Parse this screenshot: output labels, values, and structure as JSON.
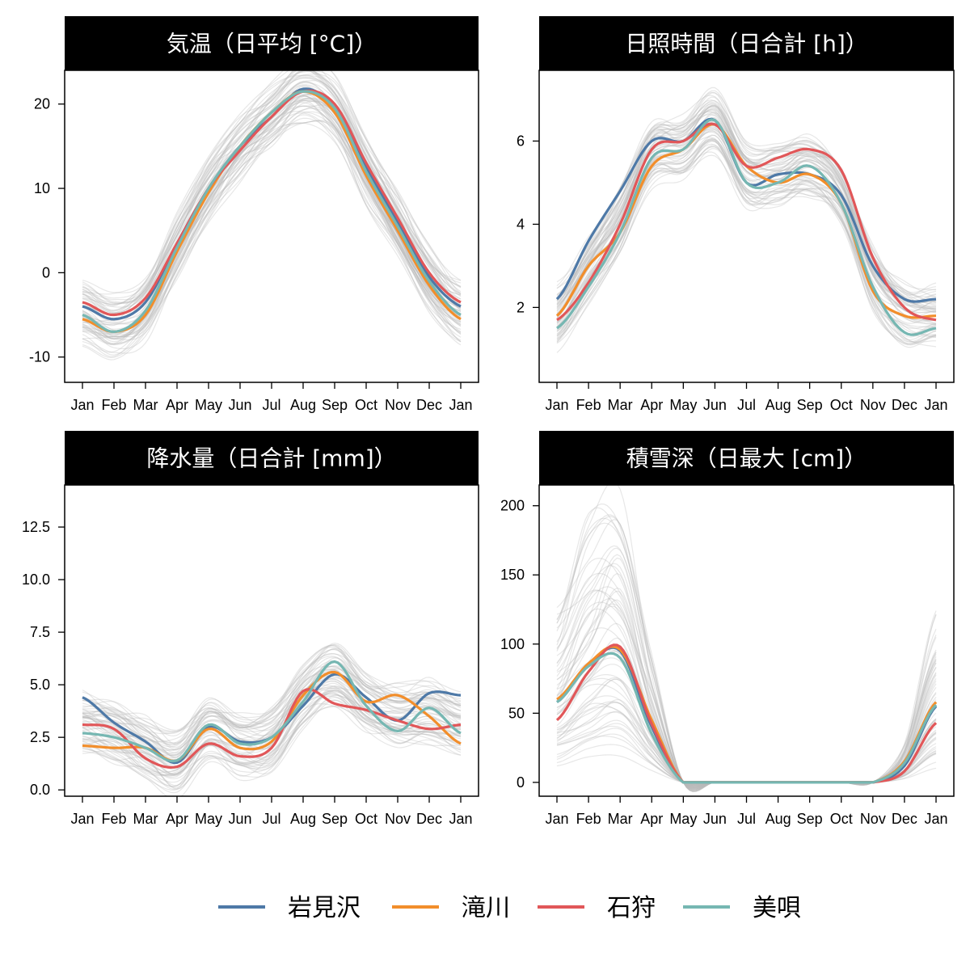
{
  "legend": {
    "items": [
      {
        "name": "岩見沢",
        "color": "#4e79a7"
      },
      {
        "name": "滝川",
        "color": "#f28e2b"
      },
      {
        "name": "石狩",
        "color": "#e15759"
      },
      {
        "name": "美唄",
        "color": "#76b7b2"
      }
    ]
  },
  "background_line_color": "#bbbbbb",
  "chart_data": [
    {
      "type": "line",
      "title": "気温（日平均 [°C]）",
      "x_ticks": [
        "Jan",
        "Feb",
        "Mar",
        "Apr",
        "May",
        "Jun",
        "Jul",
        "Aug",
        "Sep",
        "Oct",
        "Nov",
        "Dec",
        "Jan"
      ],
      "y_ticks": [
        "-10",
        "0",
        "10",
        "20"
      ],
      "ylim": [
        -13,
        24
      ],
      "grid": false,
      "series": [
        {
          "name": "岩見沢",
          "values": [
            -4.0,
            -5.5,
            -3.5,
            3.5,
            10.0,
            15.0,
            18.5,
            21.8,
            19.5,
            12.5,
            6.0,
            -0.5,
            -4.0
          ]
        },
        {
          "name": "滝川",
          "values": [
            -5.5,
            -7.0,
            -5.0,
            2.5,
            9.5,
            15.0,
            19.0,
            21.5,
            19.0,
            11.5,
            5.0,
            -1.5,
            -5.5
          ]
        },
        {
          "name": "石狩",
          "values": [
            -3.5,
            -5.0,
            -3.0,
            3.5,
            10.0,
            14.5,
            18.5,
            21.5,
            20.0,
            13.0,
            6.5,
            0.0,
            -3.5
          ]
        },
        {
          "name": "美唄",
          "values": [
            -5.0,
            -7.0,
            -4.5,
            3.0,
            10.0,
            15.0,
            19.0,
            21.5,
            19.5,
            12.0,
            5.5,
            -1.0,
            -5.0
          ]
        }
      ]
    },
    {
      "type": "line",
      "title": "日照時間（日合計 [h]）",
      "x_ticks": [
        "Jan",
        "Feb",
        "Mar",
        "Apr",
        "May",
        "Jun",
        "Jul",
        "Aug",
        "Sep",
        "Oct",
        "Nov",
        "Dec",
        "Jan"
      ],
      "y_ticks": [
        "2",
        "4",
        "6"
      ],
      "ylim": [
        0.2,
        7.7
      ],
      "grid": false,
      "series": [
        {
          "name": "岩見沢",
          "values": [
            2.2,
            3.6,
            4.8,
            6.0,
            6.0,
            6.5,
            5.0,
            5.2,
            5.2,
            4.7,
            3.0,
            2.2,
            2.2
          ]
        },
        {
          "name": "滝川",
          "values": [
            1.8,
            3.0,
            3.8,
            5.4,
            5.8,
            6.4,
            5.4,
            5.0,
            5.2,
            4.5,
            2.4,
            1.8,
            1.8
          ]
        },
        {
          "name": "石狩",
          "values": [
            1.7,
            2.6,
            4.0,
            5.8,
            6.0,
            6.4,
            5.4,
            5.6,
            5.8,
            5.3,
            3.2,
            2.0,
            1.7
          ]
        },
        {
          "name": "美唄",
          "values": [
            1.5,
            2.5,
            3.8,
            5.6,
            5.8,
            6.5,
            5.0,
            5.0,
            5.4,
            4.5,
            2.5,
            1.4,
            1.5
          ]
        }
      ]
    },
    {
      "type": "line",
      "title": "降水量（日合計 [mm]）",
      "x_ticks": [
        "Jan",
        "Feb",
        "Mar",
        "Apr",
        "May",
        "Jun",
        "Jul",
        "Aug",
        "Sep",
        "Oct",
        "Nov",
        "Dec",
        "Jan"
      ],
      "y_ticks": [
        "0.0",
        "2.5",
        "5.0",
        "7.5",
        "10.0",
        "12.5"
      ],
      "ylim": [
        -0.3,
        14.5
      ],
      "grid": false,
      "series": [
        {
          "name": "岩見沢",
          "values": [
            4.4,
            3.2,
            2.3,
            1.3,
            3.0,
            2.3,
            2.5,
            4.0,
            5.5,
            4.4,
            3.3,
            4.6,
            4.5
          ]
        },
        {
          "name": "滝川",
          "values": [
            2.1,
            2.0,
            2.0,
            1.4,
            2.9,
            2.0,
            2.3,
            4.5,
            5.6,
            4.2,
            4.5,
            3.5,
            2.2
          ]
        },
        {
          "name": "石狩",
          "values": [
            3.1,
            2.9,
            1.5,
            1.1,
            2.2,
            1.6,
            2.0,
            4.7,
            4.1,
            3.8,
            3.3,
            2.9,
            3.1
          ]
        },
        {
          "name": "美唄",
          "values": [
            2.7,
            2.5,
            2.0,
            1.4,
            3.1,
            2.2,
            2.5,
            4.2,
            6.1,
            4.0,
            2.8,
            3.9,
            2.7
          ]
        }
      ]
    },
    {
      "type": "line",
      "title": "積雪深（日最大 [cm]）",
      "x_ticks": [
        "Jan",
        "Feb",
        "Mar",
        "Apr",
        "May",
        "Jun",
        "Jul",
        "Aug",
        "Sep",
        "Oct",
        "Nov",
        "Dec",
        "Jan"
      ],
      "y_ticks": [
        "0",
        "50",
        "100",
        "150",
        "200"
      ],
      "ylim": [
        -10,
        215
      ],
      "grid": false,
      "series": [
        {
          "name": "岩見沢",
          "values": [
            58,
            85,
            95,
            40,
            0,
            0,
            0,
            0,
            0,
            0,
            0,
            12,
            55
          ]
        },
        {
          "name": "滝川",
          "values": [
            60,
            86,
            96,
            45,
            0,
            0,
            0,
            0,
            0,
            0,
            0,
            15,
            58
          ]
        },
        {
          "name": "石狩",
          "values": [
            45,
            80,
            98,
            42,
            0,
            0,
            0,
            0,
            0,
            0,
            0,
            8,
            43
          ]
        },
        {
          "name": "美唄",
          "values": [
            58,
            84,
            90,
            35,
            0,
            0,
            0,
            0,
            0,
            0,
            0,
            14,
            56
          ]
        }
      ]
    }
  ]
}
